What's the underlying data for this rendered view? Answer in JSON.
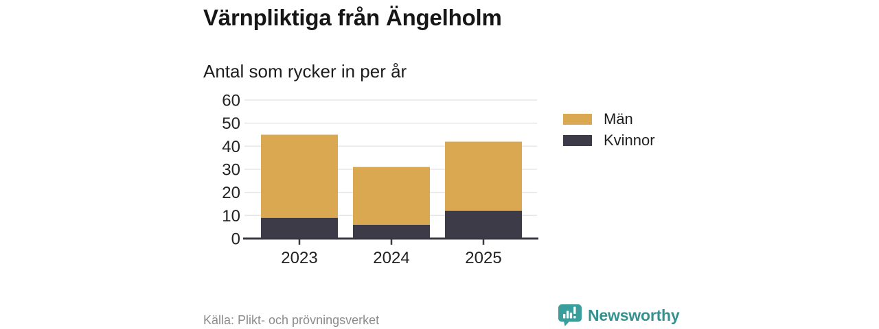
{
  "title": "Värnpliktiga från Ängelholm",
  "subtitle": "Antal som rycker in per år",
  "source": "Källa: Plikt- och prövningsverket",
  "brand": {
    "name": "Newsworthy",
    "text_color": "#35918f",
    "icon_color": "#3a9e9c"
  },
  "legend": {
    "items": [
      {
        "label": "Män",
        "color": "#d9a851"
      },
      {
        "label": "Kvinnor",
        "color": "#3d3b47"
      }
    ]
  },
  "colors": {
    "men": "#d9a851",
    "women": "#3d3b47",
    "grid": "#e7e7ea",
    "axis": "#3a3844",
    "tick_text": "#222222",
    "muted_text": "#8b8b8b"
  },
  "chart_data": {
    "type": "bar",
    "stacked": true,
    "title": "Värnpliktiga från Ängelholm",
    "subtitle": "Antal som rycker in per år",
    "categories": [
      "2023",
      "2024",
      "2025"
    ],
    "series": [
      {
        "name": "Män",
        "values": [
          36,
          25,
          30
        ],
        "color": "#d9a851"
      },
      {
        "name": "Kvinnor",
        "values": [
          9,
          6,
          12
        ],
        "color": "#3d3b47"
      }
    ],
    "stack_order_bottom_to_top": [
      "Kvinnor",
      "Män"
    ],
    "stacked_totals": [
      45,
      31,
      42
    ],
    "xlabel": "",
    "ylabel": "",
    "ylim": [
      0,
      60
    ],
    "yticks": [
      0,
      10,
      20,
      30,
      40,
      50,
      60
    ],
    "grid": true,
    "legend_position": "right"
  }
}
